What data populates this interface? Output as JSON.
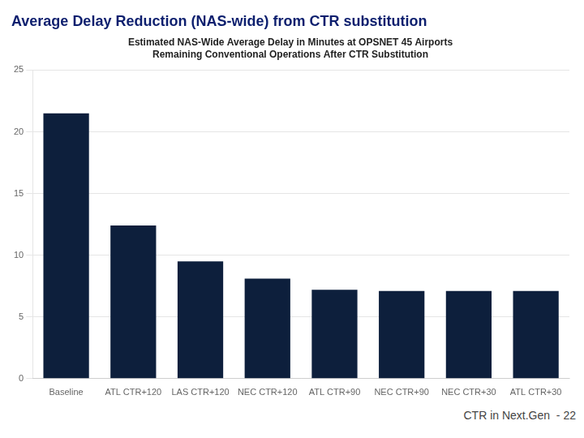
{
  "chart_data": {
    "type": "bar",
    "title": "Average Delay Reduction (NAS-wide) from CTR substitution",
    "subtitle": [
      "Estimated NAS-Wide Average Delay in Minutes at OPSNET 45 Airports",
      "Remaining Conventional Operations After CTR Substitution"
    ],
    "annotations": [
      "CTR in Next.Gen  - 22"
    ],
    "categories": [
      "Baseline",
      "ATL CTR+120",
      "LAS CTR+120",
      "NEC CTR+120",
      "ATL CTR+90",
      "NEC CTR+90",
      "NEC CTR+30",
      "ATL CTR+30"
    ],
    "values": [
      21.5,
      12.4,
      9.5,
      8.1,
      7.2,
      7.1,
      7.1,
      7.1
    ],
    "color": "#0d1f3c",
    "ylim": [
      0,
      25
    ],
    "yticks": [
      0,
      5,
      10,
      15,
      20,
      25
    ],
    "grid": true
  }
}
